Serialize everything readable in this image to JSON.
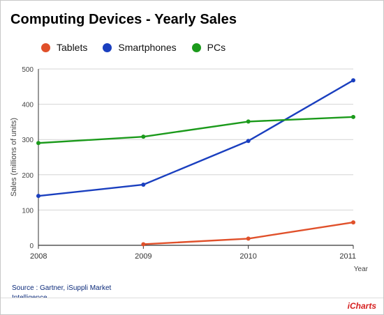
{
  "title": "Computing Devices - Yearly Sales",
  "source": "Source : Gartner, iSuppli Market Intelligence",
  "watermark": "iCharts",
  "colors": {
    "tablets": "#e0502a",
    "smartphones": "#1a3fbf",
    "pcs": "#1b9a1b",
    "grid": "#d4d4d4",
    "axis": "#333333"
  },
  "chart_data": {
    "type": "line",
    "title": "Computing Devices - Yearly Sales",
    "xlabel": "Year",
    "ylabel": "Sales (millions of units)",
    "x": [
      "2008",
      "2009",
      "2010",
      "2011"
    ],
    "ylim": [
      0,
      500
    ],
    "yticks": [
      0,
      100,
      200,
      300,
      400,
      500
    ],
    "grid": true,
    "legend_position": "top",
    "series": [
      {
        "name": "Tablets",
        "color": "#e0502a",
        "values": [
          null,
          3,
          19,
          65
        ]
      },
      {
        "name": "Smartphones",
        "color": "#1a3fbf",
        "values": [
          140,
          172,
          296,
          468
        ]
      },
      {
        "name": "PCs",
        "color": "#1b9a1b",
        "values": [
          290,
          308,
          351,
          364
        ]
      }
    ]
  }
}
